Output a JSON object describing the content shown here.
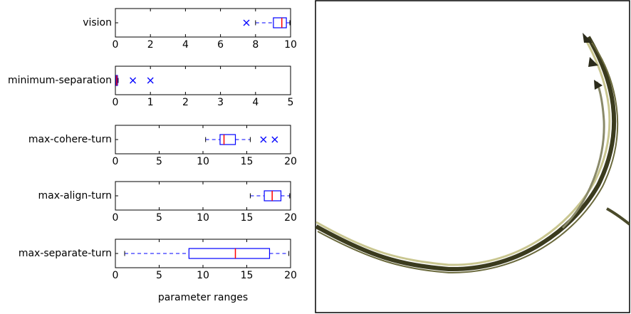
{
  "chart_data": [
    {
      "type": "box",
      "categories": [
        "vision"
      ],
      "whislo": [
        8.0
      ],
      "q1": [
        9.02
      ],
      "med": [
        9.5
      ],
      "q3": [
        9.76
      ],
      "whishi": [
        9.96
      ],
      "fliers": [
        7.48
      ],
      "xlim": [
        0,
        10
      ],
      "xticks": [
        0,
        2,
        4,
        6,
        8,
        10
      ],
      "color": "#0000ff",
      "median_color": "#ff0000"
    },
    {
      "type": "box",
      "categories": [
        "minimum-separation"
      ],
      "whislo": [
        0.0
      ],
      "q1": [
        0.02
      ],
      "med": [
        0.04
      ],
      "q3": [
        0.06
      ],
      "whishi": [
        0.08
      ],
      "fliers": [
        0.5,
        1.0
      ],
      "xlim": [
        0,
        5
      ],
      "xticks": [
        0,
        1,
        2,
        3,
        4,
        5
      ],
      "color": "#0000ff",
      "median_color": "#ff0000"
    },
    {
      "type": "box",
      "categories": [
        "max-cohere-turn"
      ],
      "whislo": [
        10.3
      ],
      "q1": [
        11.95
      ],
      "med": [
        12.4
      ],
      "q3": [
        13.7
      ],
      "whishi": [
        15.4
      ],
      "fliers": [
        16.9,
        18.2
      ],
      "xlim": [
        0,
        20
      ],
      "xticks": [
        0,
        5,
        10,
        15,
        20
      ],
      "color": "#0000ff",
      "median_color": "#ff0000"
    },
    {
      "type": "box",
      "categories": [
        "max-align-turn"
      ],
      "whislo": [
        15.4
      ],
      "q1": [
        17.0
      ],
      "med": [
        17.9
      ],
      "q3": [
        18.9
      ],
      "whishi": [
        19.9
      ],
      "fliers": [],
      "xlim": [
        0,
        20
      ],
      "xticks": [
        0,
        5,
        10,
        15,
        20
      ],
      "color": "#0000ff",
      "median_color": "#ff0000"
    },
    {
      "type": "box",
      "categories": [
        "max-separate-turn"
      ],
      "whislo": [
        1.06
      ],
      "q1": [
        8.4
      ],
      "med": [
        13.7
      ],
      "q3": [
        17.6
      ],
      "whishi": [
        19.8
      ],
      "fliers": [],
      "xlim": [
        0,
        20
      ],
      "xticks": [
        0,
        5,
        10,
        15,
        20
      ],
      "color": "#0000ff",
      "median_color": "#ff0000",
      "xlabel": "parameter ranges"
    }
  ]
}
